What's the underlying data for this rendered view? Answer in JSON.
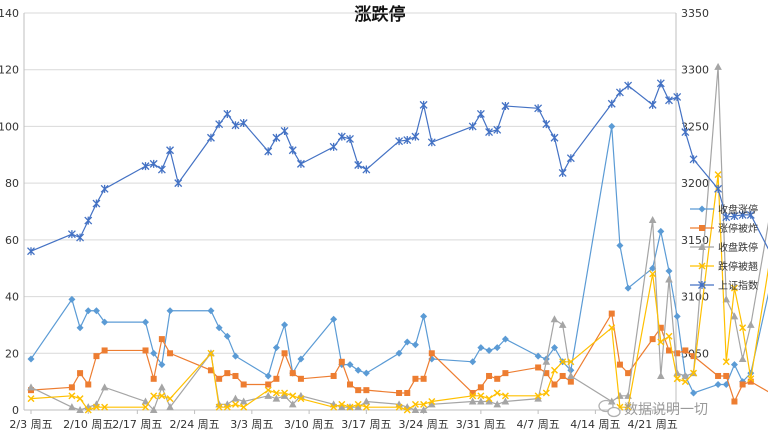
{
  "chart_data": {
    "type": "line",
    "title": "涨跌停",
    "x": [
      "2/3 周五",
      "",
      "",
      "",
      "",
      "",
      "",
      "2/10 周五",
      "",
      "",
      "",
      "",
      "",
      "2/17 周五",
      "",
      "",
      "",
      "",
      "",
      "",
      "2/24 周五",
      "",
      "",
      "",
      "",
      "",
      "",
      "3/3 周五",
      "",
      "",
      "",
      "",
      "",
      "",
      "3/10 周五",
      "",
      "",
      "",
      "",
      "",
      "",
      "3/17 周五",
      "",
      "",
      "",
      "",
      "",
      "",
      "3/24 周五",
      "",
      "",
      "",
      "",
      "",
      "",
      "3/31 周五",
      "",
      "",
      "",
      "",
      "",
      "",
      "4/7 周五",
      "",
      "",
      "",
      "",
      "",
      "",
      "4/14 周五",
      "",
      "",
      "",
      "",
      "",
      "",
      "4/21 周五",
      "",
      ""
    ],
    "x_tick_labels": [
      "2/3 周五",
      "2/10 周五",
      "2/17 周五",
      "2/24 周五",
      "3/3 周五",
      "3/10 周五",
      "3/17 周五",
      "3/24 周五",
      "3/31 周五",
      "4/7 周五",
      "4/14 周五",
      "4/21 周五"
    ],
    "y_left": {
      "min": 0,
      "max": 140,
      "ticks": [
        0,
        20,
        40,
        60,
        80,
        100,
        120,
        140
      ]
    },
    "y_right": {
      "min": 3000,
      "max": 3350,
      "ticks": [
        3050,
        3100,
        3150,
        3200,
        3250,
        3300,
        3350
      ]
    },
    "legend_position": "right",
    "grid": true,
    "series": [
      {
        "name": "收盘涨停",
        "axis": "left",
        "color": "#5b9bd5",
        "marker": "diamond",
        "points": [
          [
            0,
            18
          ],
          [
            5,
            39
          ],
          [
            6,
            29
          ],
          [
            7,
            35
          ],
          [
            8,
            35
          ],
          [
            9,
            31
          ],
          [
            14,
            31
          ],
          [
            15,
            20
          ],
          [
            16,
            16
          ],
          [
            17,
            35
          ],
          [
            22,
            35
          ],
          [
            23,
            29
          ],
          [
            24,
            26
          ],
          [
            25,
            19
          ],
          [
            29,
            12
          ],
          [
            30,
            22
          ],
          [
            31,
            30
          ],
          [
            32,
            13
          ],
          [
            33,
            18
          ],
          [
            37,
            32
          ],
          [
            38,
            16
          ],
          [
            39,
            16
          ],
          [
            40,
            14
          ],
          [
            41,
            13
          ],
          [
            45,
            20
          ],
          [
            46,
            24
          ],
          [
            47,
            23
          ],
          [
            48,
            33
          ],
          [
            49,
            18
          ],
          [
            54,
            17
          ],
          [
            55,
            22
          ],
          [
            56,
            21
          ],
          [
            57,
            22
          ],
          [
            58,
            25
          ],
          [
            62,
            19
          ],
          [
            63,
            18
          ],
          [
            64,
            22
          ],
          [
            65,
            17
          ],
          [
            66,
            14
          ],
          [
            71,
            100
          ],
          [
            72,
            58
          ],
          [
            73,
            43
          ],
          [
            76,
            50
          ],
          [
            77,
            63
          ],
          [
            78,
            49
          ],
          [
            79,
            33
          ],
          [
            80,
            12
          ],
          [
            81,
            6
          ],
          [
            84,
            9
          ],
          [
            85,
            9
          ],
          [
            86,
            16
          ],
          [
            87,
            10
          ],
          [
            88,
            13
          ],
          [
            91,
            52
          ]
        ]
      },
      {
        "name": "涨停被炸",
        "axis": "left",
        "color": "#ed7d31",
        "marker": "square",
        "points": [
          [
            0,
            7
          ],
          [
            5,
            8
          ],
          [
            6,
            13
          ],
          [
            7,
            9
          ],
          [
            8,
            19
          ],
          [
            9,
            21
          ],
          [
            14,
            21
          ],
          [
            15,
            11
          ],
          [
            16,
            25
          ],
          [
            17,
            20
          ],
          [
            22,
            14
          ],
          [
            23,
            11
          ],
          [
            24,
            13
          ],
          [
            25,
            12
          ],
          [
            26,
            9
          ],
          [
            29,
            9
          ],
          [
            30,
            11
          ],
          [
            31,
            20
          ],
          [
            32,
            13
          ],
          [
            33,
            11
          ],
          [
            37,
            12
          ],
          [
            38,
            17
          ],
          [
            39,
            9
          ],
          [
            40,
            7
          ],
          [
            41,
            7
          ],
          [
            45,
            6
          ],
          [
            46,
            6
          ],
          [
            47,
            11
          ],
          [
            48,
            11
          ],
          [
            49,
            20
          ],
          [
            54,
            6
          ],
          [
            55,
            8
          ],
          [
            56,
            12
          ],
          [
            57,
            11
          ],
          [
            58,
            13
          ],
          [
            62,
            15
          ],
          [
            63,
            13
          ],
          [
            64,
            9
          ],
          [
            65,
            12
          ],
          [
            66,
            10
          ],
          [
            71,
            34
          ],
          [
            72,
            16
          ],
          [
            73,
            13
          ],
          [
            76,
            25
          ],
          [
            77,
            29
          ],
          [
            78,
            21
          ],
          [
            79,
            20
          ],
          [
            80,
            21
          ],
          [
            81,
            19
          ],
          [
            84,
            12
          ],
          [
            85,
            12
          ],
          [
            86,
            3
          ],
          [
            87,
            9
          ],
          [
            88,
            10
          ],
          [
            91,
            5
          ]
        ]
      },
      {
        "name": "收盘跌停",
        "axis": "left",
        "color": "#a5a5a5",
        "marker": "triangle",
        "points": [
          [
            0,
            8
          ],
          [
            5,
            1
          ],
          [
            6,
            0
          ],
          [
            7,
            1
          ],
          [
            8,
            2
          ],
          [
            9,
            8
          ],
          [
            14,
            3
          ],
          [
            15,
            0
          ],
          [
            16,
            8
          ],
          [
            17,
            1
          ],
          [
            22,
            20
          ],
          [
            23,
            2
          ],
          [
            24,
            2
          ],
          [
            25,
            4
          ],
          [
            26,
            3
          ],
          [
            29,
            5
          ],
          [
            30,
            4
          ],
          [
            31,
            5
          ],
          [
            32,
            2
          ],
          [
            33,
            5
          ],
          [
            37,
            2
          ],
          [
            38,
            1
          ],
          [
            39,
            1
          ],
          [
            40,
            1
          ],
          [
            41,
            3
          ],
          [
            45,
            2
          ],
          [
            46,
            1
          ],
          [
            47,
            0
          ],
          [
            48,
            0
          ],
          [
            49,
            2
          ],
          [
            54,
            3
          ],
          [
            55,
            3
          ],
          [
            56,
            3
          ],
          [
            57,
            2
          ],
          [
            58,
            3
          ],
          [
            62,
            4
          ],
          [
            63,
            17
          ],
          [
            64,
            32
          ],
          [
            65,
            30
          ],
          [
            66,
            12
          ],
          [
            71,
            3
          ],
          [
            72,
            5
          ],
          [
            73,
            5
          ],
          [
            76,
            67
          ],
          [
            77,
            12
          ],
          [
            78,
            46
          ],
          [
            79,
            13
          ],
          [
            80,
            12
          ],
          [
            81,
            13
          ],
          [
            84,
            121
          ],
          [
            85,
            39
          ],
          [
            86,
            33
          ],
          [
            87,
            18
          ],
          [
            88,
            30
          ],
          [
            91,
            80
          ]
        ]
      },
      {
        "name": "跌停被翘",
        "axis": "left",
        "color": "#ffc000",
        "marker": "x",
        "points": [
          [
            0,
            4
          ],
          [
            5,
            5
          ],
          [
            6,
            4
          ],
          [
            7,
            0
          ],
          [
            8,
            1
          ],
          [
            9,
            1
          ],
          [
            14,
            1
          ],
          [
            15,
            5
          ],
          [
            16,
            5
          ],
          [
            17,
            4
          ],
          [
            22,
            20
          ],
          [
            23,
            1
          ],
          [
            24,
            1
          ],
          [
            25,
            2
          ],
          [
            26,
            1
          ],
          [
            29,
            7
          ],
          [
            30,
            6
          ],
          [
            31,
            6
          ],
          [
            32,
            5
          ],
          [
            33,
            4
          ],
          [
            37,
            1
          ],
          [
            38,
            2
          ],
          [
            39,
            1
          ],
          [
            40,
            2
          ],
          [
            41,
            1
          ],
          [
            45,
            1
          ],
          [
            46,
            0
          ],
          [
            47,
            2
          ],
          [
            48,
            2
          ],
          [
            49,
            3
          ],
          [
            54,
            5
          ],
          [
            55,
            5
          ],
          [
            56,
            4
          ],
          [
            57,
            6
          ],
          [
            58,
            5
          ],
          [
            62,
            5
          ],
          [
            63,
            6
          ],
          [
            64,
            14
          ],
          [
            65,
            17
          ],
          [
            66,
            17
          ],
          [
            71,
            29
          ],
          [
            72,
            1
          ],
          [
            73,
            1
          ],
          [
            76,
            48
          ],
          [
            77,
            24
          ],
          [
            78,
            26
          ],
          [
            79,
            11
          ],
          [
            80,
            10
          ],
          [
            81,
            13
          ],
          [
            84,
            83
          ],
          [
            85,
            17
          ],
          [
            86,
            43
          ],
          [
            87,
            29
          ],
          [
            88,
            11
          ],
          [
            91,
            65
          ]
        ]
      },
      {
        "name": "上证指数",
        "axis": "right",
        "color": "#4472c4",
        "marker": "star",
        "points": [
          [
            0,
            3140
          ],
          [
            5,
            3155
          ],
          [
            6,
            3152
          ],
          [
            7,
            3167
          ],
          [
            8,
            3182
          ],
          [
            9,
            3195
          ],
          [
            14,
            3215
          ],
          [
            15,
            3217
          ],
          [
            16,
            3212
          ],
          [
            17,
            3229
          ],
          [
            18,
            3200
          ],
          [
            22,
            3240
          ],
          [
            23,
            3252
          ],
          [
            24,
            3261
          ],
          [
            25,
            3251
          ],
          [
            26,
            3253
          ],
          [
            29,
            3228
          ],
          [
            30,
            3240
          ],
          [
            31,
            3246
          ],
          [
            32,
            3229
          ],
          [
            33,
            3217
          ],
          [
            37,
            3232
          ],
          [
            38,
            3241
          ],
          [
            39,
            3239
          ],
          [
            40,
            3216
          ],
          [
            41,
            3212
          ],
          [
            45,
            3237
          ],
          [
            46,
            3238
          ],
          [
            47,
            3241
          ],
          [
            48,
            3269
          ],
          [
            49,
            3236
          ],
          [
            54,
            3250
          ],
          [
            55,
            3261
          ],
          [
            56,
            3245
          ],
          [
            57,
            3247
          ],
          [
            58,
            3268
          ],
          [
            62,
            3266
          ],
          [
            63,
            3252
          ],
          [
            64,
            3240
          ],
          [
            65,
            3209
          ],
          [
            66,
            3222
          ],
          [
            71,
            3270
          ],
          [
            72,
            3280
          ],
          [
            73,
            3286
          ],
          [
            76,
            3269
          ],
          [
            77,
            3288
          ],
          [
            78,
            3273
          ],
          [
            79,
            3276
          ],
          [
            80,
            3245
          ],
          [
            81,
            3221
          ],
          [
            84,
            3195
          ],
          [
            85,
            3170
          ],
          [
            86,
            3171
          ],
          [
            87,
            3172
          ],
          [
            88,
            3172
          ],
          [
            91,
            3130
          ]
        ]
      }
    ]
  },
  "watermark": {
    "text": "数据说明一切"
  }
}
